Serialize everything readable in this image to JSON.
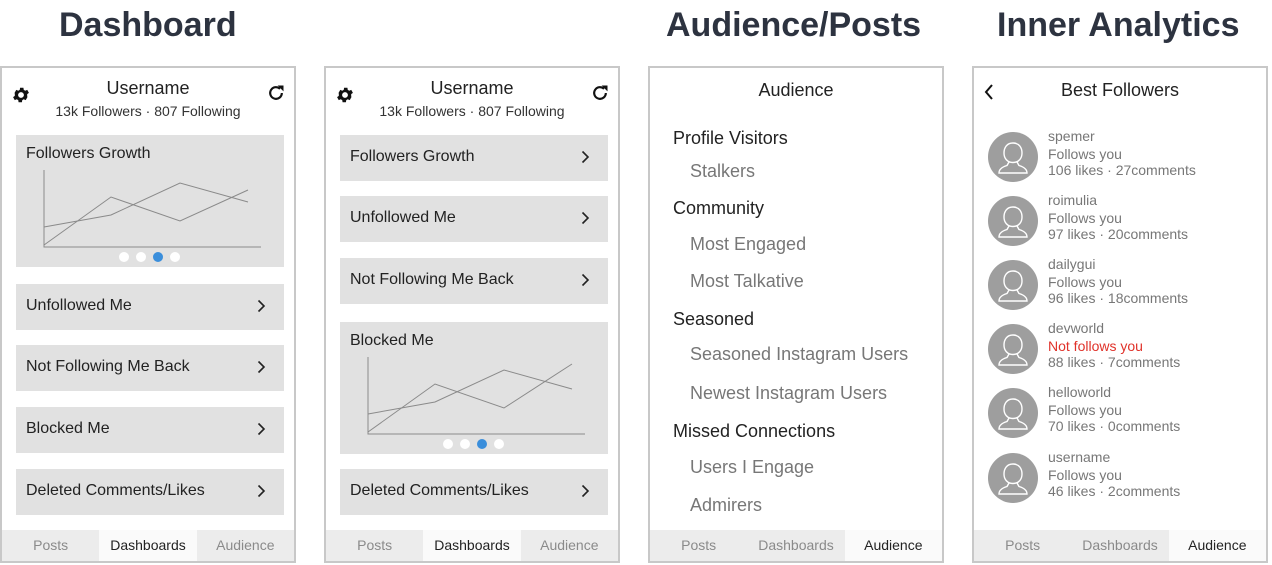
{
  "headings": {
    "dashboard": "Dashboard",
    "audience_posts": "Audience/Posts",
    "inner_analytics": "Inner Analytics"
  },
  "colors": {
    "accent_dot": "#3a8edb",
    "card_bg": "#e1e1e1",
    "not_follows": "#e0322a"
  },
  "icons": {
    "settings": "gear-icon",
    "refresh": "refresh-icon",
    "chevron": "chevron-right-icon",
    "back": "chevron-left-icon",
    "avatar": "user-avatar-icon"
  },
  "profile": {
    "username": "Username",
    "stats": "13k Followers · 807 Following"
  },
  "tabs": [
    "Posts",
    "Dashboards",
    "Audience"
  ],
  "screen1": {
    "chart_title": "Followers Growth",
    "carousel": {
      "total": 4,
      "active_index": 2
    },
    "rows": [
      "Unfollowed Me",
      "Not Following Me Back",
      "Blocked Me",
      "Deleted Comments/Likes"
    ],
    "active_tab": 1
  },
  "screen2": {
    "rows_top": [
      "Followers Growth",
      "Unfollowed Me",
      "Not Following Me Back"
    ],
    "chart_title": "Blocked Me",
    "carousel": {
      "total": 4,
      "active_index": 2
    },
    "row_bottom": "Deleted Comments/Likes",
    "active_tab": 1
  },
  "audience": {
    "title": "Audience",
    "sections": [
      {
        "label": "Profile Visitors",
        "items": [
          "Stalkers"
        ]
      },
      {
        "label": "Community",
        "items": [
          "Most Engaged",
          "Most Talkative"
        ]
      },
      {
        "label": "Seasoned",
        "items": [
          "Seasoned Instagram Users",
          "Newest Instagram Users"
        ]
      },
      {
        "label": "Missed Connections",
        "items": [
          "Users I Engage",
          "Admirers"
        ]
      }
    ],
    "active_tab": 2
  },
  "best_followers": {
    "title": "Best Followers",
    "followers": [
      {
        "name": "spemer",
        "status": "Follows you",
        "follows": true,
        "stats": "106 likes · 27comments"
      },
      {
        "name": "roimulia",
        "status": "Follows you",
        "follows": true,
        "stats": "97 likes · 20comments"
      },
      {
        "name": "dailygui",
        "status": "Follows you",
        "follows": true,
        "stats": "96 likes · 18comments"
      },
      {
        "name": "devworld",
        "status": "Not follows you",
        "follows": false,
        "stats": "88 likes · 7comments"
      },
      {
        "name": "helloworld",
        "status": "Follows you",
        "follows": true,
        "stats": "70 likes · 0comments"
      },
      {
        "name": "username",
        "status": "Follows you",
        "follows": true,
        "stats": "46 likes · 2comments"
      }
    ],
    "active_tab": 2
  }
}
